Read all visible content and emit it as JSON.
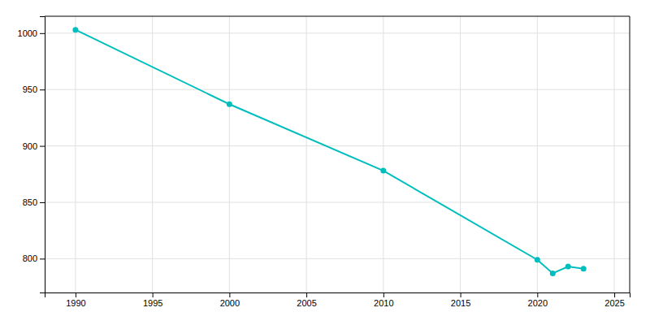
{
  "chart_data": {
    "type": "line",
    "x": [
      1990,
      2000,
      2010,
      2020,
      2021,
      2022,
      2023
    ],
    "values": [
      1003,
      937,
      878,
      799,
      787,
      793,
      791
    ],
    "color": "#00BEBE",
    "marker": "circle",
    "xlim": [
      1988,
      2026
    ],
    "ylim": [
      770,
      1015
    ],
    "xticks": [
      1990,
      1995,
      2000,
      2005,
      2010,
      2015,
      2020,
      2025
    ],
    "yticks": [
      800,
      850,
      900,
      950,
      1000
    ],
    "grid": true
  }
}
